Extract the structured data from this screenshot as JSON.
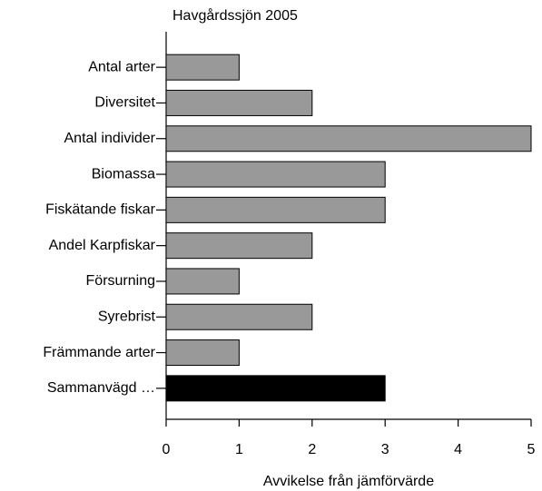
{
  "chart_data": {
    "type": "barh",
    "title": "Havgårdssjön 2005",
    "x_label": "Avvikelse från jämförvärde",
    "categories": [
      "Antal arter",
      "Diversitet",
      "Antal individer",
      "Biomassa",
      "Fiskätande fiskar",
      "Andel Karpfiskar",
      "Försurning",
      "Syrebrist",
      "Främmande arter",
      "Sammanvägd …"
    ],
    "values": [
      1,
      2,
      5,
      3,
      3,
      2,
      1,
      2,
      1,
      3
    ],
    "colors": [
      "#999999",
      "#999999",
      "#999999",
      "#999999",
      "#999999",
      "#999999",
      "#999999",
      "#999999",
      "#999999",
      "#000000"
    ],
    "xlim": [
      0,
      5
    ],
    "xticks": [
      0,
      1,
      2,
      3,
      4,
      5
    ]
  }
}
